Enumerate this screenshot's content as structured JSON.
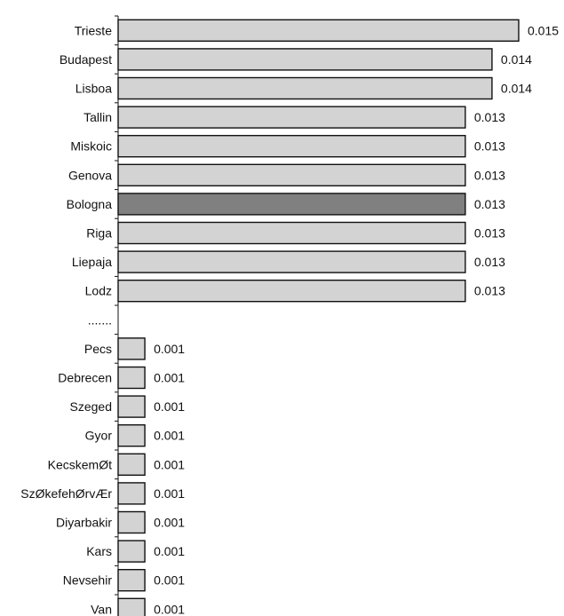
{
  "chart_data": {
    "type": "bar",
    "orientation": "horizontal",
    "categories": [
      "Trieste",
      "Budapest",
      "Lisboa",
      "Tallin",
      "Miskoic",
      "Genova",
      "Bologna",
      "Riga",
      "Liepaja",
      "Lodz",
      ".......",
      "Pecs",
      "Debrecen",
      "Szeged",
      "Gyor",
      "KecskemØt",
      "SzØkefehØrvÆr",
      "Diyarbakir",
      "Kars",
      "Nevsehir",
      "Van"
    ],
    "values": [
      0.015,
      0.014,
      0.014,
      0.013,
      0.013,
      0.013,
      0.013,
      0.013,
      0.013,
      0.013,
      null,
      0.001,
      0.001,
      0.001,
      0.001,
      0.001,
      0.001,
      0.001,
      0.001,
      0.001,
      0.001
    ],
    "value_labels": [
      "0.015",
      "0.014",
      "0.014",
      "0.013",
      "0.013",
      "0.013",
      "0.013",
      "0.013",
      "0.013",
      "0.013",
      "",
      "0.001",
      "0.001",
      "0.001",
      "0.001",
      "0.001",
      "0.001",
      "0.001",
      "0.001",
      "0.001",
      "0.001"
    ],
    "highlighted_category": "Bologna",
    "xlim": [
      0,
      0.015
    ],
    "colors": {
      "bar": "#d3d3d3",
      "highlight": "#808080",
      "edge": "#111111"
    },
    "grid": false,
    "legend": "none"
  }
}
